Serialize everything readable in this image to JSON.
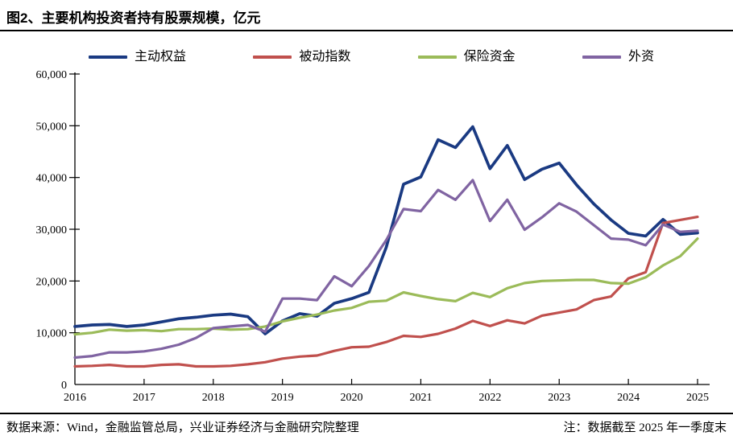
{
  "title": "图2、主要机构投资者持有股票规模，亿元",
  "footer": {
    "source": "数据来源：Wind，金融监管总局，兴业证券经济与金融研究院整理",
    "note": "注：数据截至 2025 年一季度末"
  },
  "chart_data": {
    "type": "line",
    "title": "主要机构投资者持有股票规模（亿元）",
    "xlabel": "",
    "ylabel": "",
    "grid": false,
    "legend_position": "top",
    "ylim": [
      0,
      60000
    ],
    "yticks": [
      0,
      10000,
      20000,
      30000,
      40000,
      50000,
      60000
    ],
    "x_axis_ticks": [
      "2016",
      "2017",
      "2018",
      "2019",
      "2020",
      "2021",
      "2022",
      "2023",
      "2024",
      "2025"
    ],
    "x_labels": [
      "2016Q1",
      "2016Q2",
      "2016Q3",
      "2016Q4",
      "2017Q1",
      "2017Q2",
      "2017Q3",
      "2017Q4",
      "2018Q1",
      "2018Q2",
      "2018Q3",
      "2018Q4",
      "2019Q1",
      "2019Q2",
      "2019Q3",
      "2019Q4",
      "2020Q1",
      "2020Q2",
      "2020Q3",
      "2020Q4",
      "2021Q1",
      "2021Q2",
      "2021Q3",
      "2021Q4",
      "2022Q1",
      "2022Q2",
      "2022Q3",
      "2022Q4",
      "2023Q1",
      "2023Q2",
      "2023Q3",
      "2023Q4",
      "2024Q1",
      "2024Q2",
      "2024Q3",
      "2024Q4",
      "2025Q1"
    ],
    "series": [
      {
        "name": "主动权益",
        "color": "#1a3a82",
        "stroke_width": 3.7,
        "values": [
          11200,
          11500,
          11600,
          11200,
          11500,
          12100,
          12700,
          13000,
          13400,
          13600,
          13100,
          9800,
          12300,
          13700,
          13200,
          15700,
          16600,
          17800,
          26500,
          38700,
          40100,
          47300,
          45800,
          49800,
          41700,
          46200,
          39600,
          41600,
          42800,
          38600,
          34900,
          31800,
          29200,
          28700,
          31900,
          29000,
          29300
        ]
      },
      {
        "name": "被动指数",
        "color": "#c0504d",
        "stroke_width": 3.2,
        "values": [
          3500,
          3600,
          3800,
          3500,
          3500,
          3800,
          3900,
          3500,
          3500,
          3600,
          3900,
          4300,
          5000,
          5400,
          5600,
          6500,
          7200,
          7300,
          8200,
          9400,
          9200,
          9800,
          10800,
          12300,
          11300,
          12400,
          11800,
          13300,
          13900,
          14500,
          16300,
          17000,
          20500,
          21700,
          31200,
          31800,
          32400
        ]
      },
      {
        "name": "保险资金",
        "color": "#9bbb59",
        "stroke_width": 3.2,
        "values": [
          9700,
          10000,
          10600,
          10400,
          10500,
          10300,
          10700,
          10700,
          10800,
          10600,
          10700,
          11200,
          12200,
          12900,
          13500,
          14300,
          14800,
          16000,
          16200,
          17800,
          17100,
          16500,
          16100,
          17700,
          16900,
          18600,
          19600,
          20000,
          20100,
          20200,
          20200,
          19600,
          19500,
          20700,
          23000,
          24800,
          28200
        ]
      },
      {
        "name": "外资",
        "color": "#8064a2",
        "stroke_width": 3.2,
        "values": [
          5200,
          5500,
          6200,
          6200,
          6400,
          6900,
          7700,
          9000,
          10900,
          11200,
          11500,
          10200,
          16600,
          16600,
          16300,
          20900,
          19000,
          22900,
          27900,
          33900,
          33500,
          37600,
          35700,
          39500,
          31600,
          35700,
          29900,
          32300,
          35000,
          33400,
          30800,
          28200,
          28000,
          26900,
          30900,
          29500,
          29700
        ]
      }
    ]
  }
}
